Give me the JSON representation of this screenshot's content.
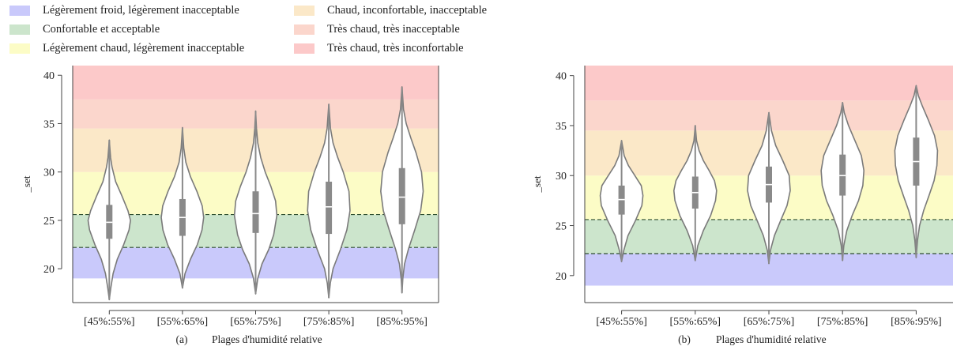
{
  "legend": [
    {
      "label": "Légèrement froid, légèrement inacceptable",
      "color": "#c9c9fb"
    },
    {
      "label": "Confortable et acceptable",
      "color": "#cce5cc"
    },
    {
      "label": "Légèrement chaud, légèrement inacceptable",
      "color": "#fcfcc6"
    },
    {
      "label": "Chaud, inconfortable, inacceptable",
      "color": "#fbe8c8"
    },
    {
      "label": "Très chaud, très inacceptable",
      "color": "#fbd6cc"
    },
    {
      "label": "Très chaud, très inconfortable",
      "color": "#fcc9c9"
    }
  ],
  "chart_data": [
    {
      "type": "violin",
      "panel_letter": "(a)",
      "xlabel": "Plages d'humidité relative",
      "ylabel": "_set",
      "ylim": [
        16.5,
        41
      ],
      "yticks": [
        20,
        25,
        30,
        35,
        40
      ],
      "categories": [
        "[45%:55%]",
        "[55%:65%]",
        "[65%:75%]",
        "[75%:85%]",
        "[85%:95%]"
      ],
      "bands": [
        {
          "from": 19,
          "to": 22.2,
          "color": "#c9c9fb"
        },
        {
          "from": 22.2,
          "to": 25.6,
          "color": "#cce5cc"
        },
        {
          "from": 25.6,
          "to": 30,
          "color": "#fcfcc6"
        },
        {
          "from": 30,
          "to": 34.5,
          "color": "#fbe8c8"
        },
        {
          "from": 34.5,
          "to": 37.5,
          "color": "#fbd6cc"
        },
        {
          "from": 37.5,
          "to": 41,
          "color": "#fcc9c9"
        }
      ],
      "dashed_lines": [
        22.2,
        25.6
      ],
      "violins": [
        {
          "min": 16.8,
          "max": 33.3,
          "q1": 23.1,
          "median": 24.8,
          "q3": 26.6,
          "profile": [
            [
              16.8,
              0
            ],
            [
              18,
              0.07
            ],
            [
              19.5,
              0.18
            ],
            [
              21,
              0.38
            ],
            [
              22.5,
              0.68
            ],
            [
              24,
              0.93
            ],
            [
              25,
              1.0
            ],
            [
              26,
              0.88
            ],
            [
              27.5,
              0.6
            ],
            [
              29,
              0.3
            ],
            [
              30.5,
              0.13
            ],
            [
              31.5,
              0.06
            ],
            [
              33.3,
              0
            ]
          ]
        },
        {
          "min": 18.0,
          "max": 34.6,
          "q1": 23.4,
          "median": 25.3,
          "q3": 27.2,
          "profile": [
            [
              18,
              0
            ],
            [
              19.5,
              0.12
            ],
            [
              21,
              0.38
            ],
            [
              22.5,
              0.7
            ],
            [
              24,
              0.92
            ],
            [
              25.3,
              1.0
            ],
            [
              26.5,
              0.93
            ],
            [
              28,
              0.68
            ],
            [
              29.5,
              0.38
            ],
            [
              31,
              0.16
            ],
            [
              32.5,
              0.06
            ],
            [
              34.6,
              0
            ]
          ]
        },
        {
          "min": 17.4,
          "max": 36.3,
          "q1": 23.7,
          "median": 25.7,
          "q3": 28.0,
          "profile": [
            [
              17.4,
              0
            ],
            [
              19,
              0.1
            ],
            [
              20.5,
              0.3
            ],
            [
              22,
              0.62
            ],
            [
              23.5,
              0.85
            ],
            [
              25.5,
              1.0
            ],
            [
              27,
              0.94
            ],
            [
              28.5,
              0.72
            ],
            [
              30,
              0.45
            ],
            [
              31.5,
              0.24
            ],
            [
              33,
              0.1
            ],
            [
              34.5,
              0.04
            ],
            [
              36.3,
              0
            ]
          ]
        },
        {
          "min": 17.0,
          "max": 37.0,
          "q1": 23.6,
          "median": 26.4,
          "q3": 29.0,
          "profile": [
            [
              17,
              0
            ],
            [
              18.5,
              0.07
            ],
            [
              20,
              0.2
            ],
            [
              22,
              0.55
            ],
            [
              24,
              0.85
            ],
            [
              26,
              1.0
            ],
            [
              28,
              0.95
            ],
            [
              30,
              0.68
            ],
            [
              31.5,
              0.42
            ],
            [
              33,
              0.2
            ],
            [
              34.5,
              0.08
            ],
            [
              37,
              0
            ]
          ]
        },
        {
          "min": 17.5,
          "max": 38.8,
          "q1": 24.6,
          "median": 27.4,
          "q3": 30.4,
          "profile": [
            [
              17.5,
              0
            ],
            [
              19,
              0.04
            ],
            [
              20.5,
              0.12
            ],
            [
              22,
              0.3
            ],
            [
              24,
              0.6
            ],
            [
              26,
              0.88
            ],
            [
              28,
              1.0
            ],
            [
              30,
              0.92
            ],
            [
              32,
              0.66
            ],
            [
              33.5,
              0.42
            ],
            [
              35,
              0.2
            ],
            [
              36.5,
              0.07
            ],
            [
              38.8,
              0
            ]
          ]
        }
      ]
    },
    {
      "type": "violin",
      "panel_letter": "(b)",
      "xlabel": "Plages d'humidité relative",
      "ylabel": "_set",
      "ylim": [
        17.3,
        41
      ],
      "yticks": [
        20,
        25,
        30,
        35,
        40
      ],
      "categories": [
        "[45%:55%]",
        "[55%:65%]",
        "[65%:75%]",
        "[75%:85%]",
        "[85%:95%]"
      ],
      "bands": [
        {
          "from": 19,
          "to": 22.2,
          "color": "#c9c9fb"
        },
        {
          "from": 22.2,
          "to": 25.6,
          "color": "#cce5cc"
        },
        {
          "from": 25.6,
          "to": 30,
          "color": "#fcfcc6"
        },
        {
          "from": 30,
          "to": 34.5,
          "color": "#fbe8c8"
        },
        {
          "from": 34.5,
          "to": 37.5,
          "color": "#fbd6cc"
        },
        {
          "from": 37.5,
          "to": 41,
          "color": "#fcc9c9"
        }
      ],
      "dashed_lines": [
        22.2,
        25.6
      ],
      "violins": [
        {
          "min": 21.4,
          "max": 33.5,
          "q1": 26.1,
          "median": 27.6,
          "q3": 29.0,
          "profile": [
            [
              21.4,
              0
            ],
            [
              22.5,
              0.1
            ],
            [
              24,
              0.3
            ],
            [
              25.5,
              0.65
            ],
            [
              27,
              0.95
            ],
            [
              28,
              1.0
            ],
            [
              29,
              0.92
            ],
            [
              30,
              0.62
            ],
            [
              31,
              0.32
            ],
            [
              32,
              0.12
            ],
            [
              33.5,
              0
            ]
          ]
        },
        {
          "min": 21.5,
          "max": 35.0,
          "q1": 26.7,
          "median": 28.3,
          "q3": 29.9,
          "profile": [
            [
              21.5,
              0
            ],
            [
              23,
              0.12
            ],
            [
              24.5,
              0.38
            ],
            [
              26,
              0.72
            ],
            [
              27.5,
              0.95
            ],
            [
              28.5,
              1.0
            ],
            [
              29.5,
              0.9
            ],
            [
              30.5,
              0.65
            ],
            [
              31.5,
              0.38
            ],
            [
              32.5,
              0.18
            ],
            [
              33.5,
              0.06
            ],
            [
              35,
              0
            ]
          ]
        },
        {
          "min": 21.2,
          "max": 36.3,
          "q1": 27.3,
          "median": 29.1,
          "q3": 30.9,
          "profile": [
            [
              21.2,
              0
            ],
            [
              22.5,
              0.07
            ],
            [
              24,
              0.26
            ],
            [
              25.5,
              0.55
            ],
            [
              27,
              0.85
            ],
            [
              28.5,
              1.0
            ],
            [
              30,
              0.95
            ],
            [
              31.5,
              0.65
            ],
            [
              33,
              0.32
            ],
            [
              34.5,
              0.12
            ],
            [
              36.3,
              0
            ]
          ]
        },
        {
          "min": 21.5,
          "max": 37.3,
          "q1": 28.0,
          "median": 30.0,
          "q3": 32.1,
          "profile": [
            [
              21.5,
              0
            ],
            [
              23,
              0.06
            ],
            [
              24.5,
              0.2
            ],
            [
              26,
              0.45
            ],
            [
              27.5,
              0.75
            ],
            [
              29,
              0.95
            ],
            [
              30.5,
              1.0
            ],
            [
              32,
              0.88
            ],
            [
              33.5,
              0.58
            ],
            [
              35,
              0.28
            ],
            [
              36.3,
              0.08
            ],
            [
              37.3,
              0
            ]
          ]
        },
        {
          "min": 21.8,
          "max": 39.0,
          "q1": 29.0,
          "median": 31.4,
          "q3": 33.8,
          "profile": [
            [
              21.8,
              0
            ],
            [
              23.5,
              0.06
            ],
            [
              25,
              0.16
            ],
            [
              26.5,
              0.35
            ],
            [
              28,
              0.6
            ],
            [
              29.5,
              0.84
            ],
            [
              31,
              0.97
            ],
            [
              32.5,
              1.0
            ],
            [
              34,
              0.86
            ],
            [
              35.5,
              0.58
            ],
            [
              37,
              0.28
            ],
            [
              38,
              0.1
            ],
            [
              39,
              0
            ]
          ]
        }
      ]
    }
  ]
}
